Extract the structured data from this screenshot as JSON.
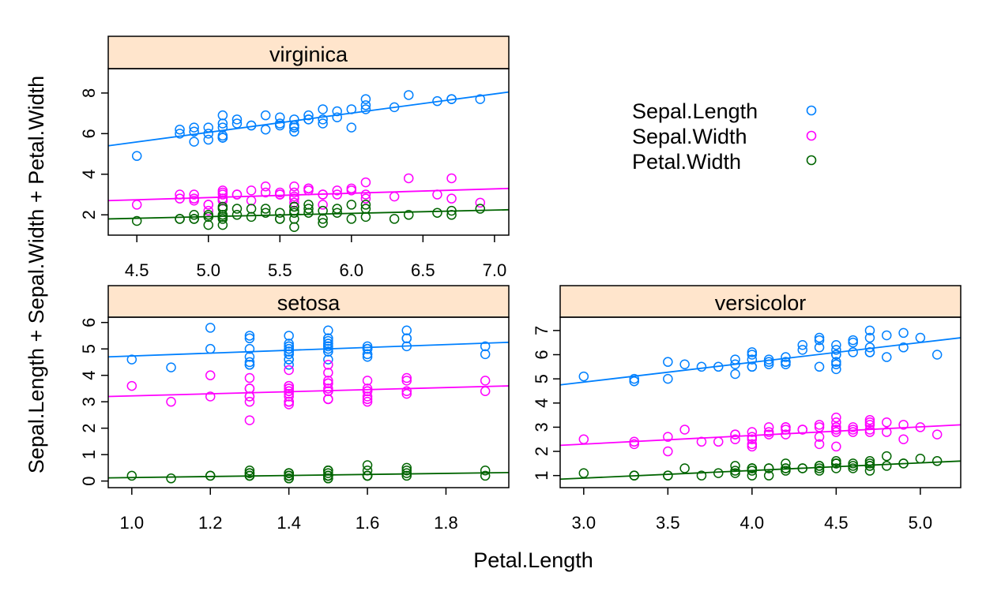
{
  "colors": {
    "strip_fill": "#ffe5cc",
    "Sepal.Length": "#0080ff",
    "Sepal.Width": "#ff00ff",
    "Petal.Width": "#006400",
    "axis": "#000000"
  },
  "chart_data": {
    "type": "scatter",
    "xlabel": "Petal.Length",
    "ylabel": "Sepal.Length + Sepal.Width + Petal.Width",
    "legend": {
      "placement": "top-right",
      "entries": [
        "Sepal.Length",
        "Sepal.Width",
        "Petal.Width"
      ],
      "marker": "open circle"
    },
    "fit_lines": true,
    "panels": [
      {
        "title": "virginica",
        "xlim": [
          4.3,
          7.1
        ],
        "ylim": [
          1.0,
          9.2
        ],
        "x_ticks": [
          "4.5",
          "5.0",
          "5.5",
          "6.0",
          "6.5",
          "7.0"
        ],
        "y_ticks": [
          "2",
          "4",
          "6",
          "8"
        ],
        "x": [
          6.0,
          5.1,
          5.9,
          5.6,
          5.8,
          6.6,
          4.5,
          6.3,
          5.8,
          6.1,
          5.1,
          5.3,
          5.5,
          5.0,
          5.1,
          5.3,
          5.5,
          6.7,
          6.9,
          5.0,
          5.7,
          4.9,
          6.7,
          4.9,
          5.7,
          6.0,
          4.8,
          4.9,
          5.6,
          5.8,
          6.1,
          6.4,
          5.6,
          5.1,
          5.6,
          6.1,
          5.6,
          5.5,
          4.8,
          5.4,
          5.6,
          5.1,
          5.1,
          5.9,
          5.7,
          5.2,
          5.0,
          5.2,
          5.4,
          5.1
        ],
        "series": [
          {
            "name": "Sepal.Length",
            "y": [
              6.3,
              5.8,
              7.1,
              6.3,
              6.5,
              7.6,
              4.9,
              7.3,
              6.7,
              7.2,
              6.5,
              6.4,
              6.8,
              5.7,
              5.8,
              6.4,
              6.5,
              7.7,
              7.7,
              6.0,
              6.9,
              5.6,
              7.7,
              6.3,
              6.7,
              7.2,
              6.2,
              6.1,
              6.4,
              7.2,
              7.4,
              7.9,
              6.4,
              6.3,
              6.1,
              7.7,
              6.3,
              6.4,
              6.0,
              6.9,
              6.7,
              6.9,
              5.8,
              6.8,
              6.7,
              6.7,
              6.3,
              6.5,
              6.2,
              5.9
            ],
            "fit": [
              5.4,
              8.05
            ]
          },
          {
            "name": "Sepal.Width",
            "y": [
              3.3,
              2.7,
              3.0,
              2.9,
              3.0,
              3.0,
              2.5,
              2.9,
              2.5,
              3.6,
              3.2,
              2.7,
              3.0,
              2.5,
              2.8,
              3.2,
              3.0,
              3.8,
              2.6,
              2.2,
              3.2,
              2.8,
              2.8,
              2.7,
              3.3,
              3.2,
              2.8,
              3.0,
              2.8,
              3.0,
              2.8,
              3.8,
              2.8,
              2.8,
              2.6,
              3.0,
              3.4,
              3.1,
              3.0,
              3.1,
              3.1,
              3.1,
              2.7,
              3.2,
              3.3,
              3.0,
              2.5,
              3.0,
              3.4,
              3.0
            ],
            "fit": [
              2.7,
              3.3
            ]
          },
          {
            "name": "Petal.Width",
            "y": [
              2.5,
              1.9,
              2.1,
              1.8,
              2.2,
              2.1,
              1.7,
              1.8,
              1.8,
              2.5,
              2.0,
              1.9,
              2.1,
              2.0,
              2.4,
              2.3,
              1.8,
              2.2,
              2.3,
              1.5,
              2.3,
              2.0,
              2.0,
              1.8,
              2.1,
              1.8,
              1.8,
              1.8,
              2.1,
              1.6,
              1.9,
              2.0,
              2.2,
              1.5,
              1.4,
              2.3,
              2.4,
              1.8,
              1.8,
              2.1,
              2.4,
              2.3,
              1.9,
              2.3,
              2.5,
              2.3,
              1.9,
              2.0,
              2.3,
              1.8
            ],
            "fit": [
              1.8,
              2.25
            ]
          }
        ]
      },
      {
        "title": "setosa",
        "xlim": [
          0.94,
          1.96
        ],
        "ylim": [
          -0.25,
          6.2
        ],
        "x_ticks": [
          "1.0",
          "1.2",
          "1.4",
          "1.6",
          "1.8"
        ],
        "y_ticks": [
          "0",
          "1",
          "2",
          "3",
          "4",
          "5",
          "6"
        ],
        "x": [
          1.4,
          1.4,
          1.3,
          1.5,
          1.4,
          1.7,
          1.4,
          1.5,
          1.4,
          1.5,
          1.5,
          1.6,
          1.4,
          1.1,
          1.2,
          1.5,
          1.3,
          1.4,
          1.7,
          1.5,
          1.7,
          1.5,
          1.0,
          1.7,
          1.9,
          1.6,
          1.6,
          1.5,
          1.4,
          1.6,
          1.6,
          1.5,
          1.5,
          1.4,
          1.5,
          1.2,
          1.3,
          1.4,
          1.3,
          1.5,
          1.3,
          1.3,
          1.3,
          1.6,
          1.9,
          1.4,
          1.6,
          1.4,
          1.5,
          1.4
        ],
        "series": [
          {
            "name": "Sepal.Length",
            "y": [
              5.1,
              4.9,
              4.7,
              4.6,
              5.0,
              5.4,
              4.6,
              5.0,
              4.4,
              4.9,
              5.4,
              4.8,
              4.8,
              4.3,
              5.8,
              5.7,
              5.4,
              5.1,
              5.7,
              5.1,
              5.4,
              5.1,
              4.6,
              5.1,
              4.8,
              5.0,
              5.0,
              5.2,
              5.2,
              4.7,
              4.8,
              5.4,
              5.2,
              5.5,
              4.9,
              5.0,
              5.5,
              4.9,
              4.4,
              5.1,
              5.0,
              4.5,
              4.4,
              5.0,
              5.1,
              4.8,
              5.1,
              4.6,
              5.3,
              5.0
            ],
            "fit": [
              4.7,
              5.25
            ]
          },
          {
            "name": "Sepal.Width",
            "y": [
              3.5,
              3.0,
              3.2,
              3.1,
              3.6,
              3.9,
              3.4,
              3.4,
              2.9,
              3.1,
              3.7,
              3.4,
              3.0,
              3.0,
              4.0,
              4.4,
              3.9,
              3.5,
              3.8,
              3.8,
              3.4,
              3.7,
              3.6,
              3.3,
              3.4,
              3.0,
              3.4,
              3.5,
              3.4,
              3.2,
              3.1,
              3.4,
              4.1,
              4.2,
              3.1,
              3.2,
              3.5,
              3.6,
              3.0,
              3.4,
              3.5,
              2.3,
              3.2,
              3.5,
              3.8,
              3.0,
              3.8,
              3.2,
              3.7,
              3.3
            ],
            "fit": [
              3.2,
              3.6
            ]
          },
          {
            "name": "Petal.Width",
            "y": [
              0.2,
              0.2,
              0.2,
              0.2,
              0.2,
              0.4,
              0.3,
              0.2,
              0.2,
              0.1,
              0.2,
              0.2,
              0.1,
              0.1,
              0.2,
              0.4,
              0.4,
              0.3,
              0.3,
              0.3,
              0.2,
              0.4,
              0.2,
              0.5,
              0.2,
              0.2,
              0.4,
              0.2,
              0.2,
              0.2,
              0.2,
              0.4,
              0.1,
              0.2,
              0.2,
              0.2,
              0.2,
              0.1,
              0.2,
              0.2,
              0.3,
              0.3,
              0.2,
              0.6,
              0.4,
              0.3,
              0.2,
              0.2,
              0.2,
              0.2
            ],
            "fit": [
              0.12,
              0.32
            ]
          }
        ]
      },
      {
        "title": "versicolor",
        "xlim": [
          2.86,
          5.24
        ],
        "ylim": [
          0.5,
          7.55
        ],
        "x_ticks": [
          "3.0",
          "3.5",
          "4.0",
          "4.5",
          "5.0"
        ],
        "y_ticks": [
          "1",
          "2",
          "3",
          "4",
          "5",
          "6",
          "7"
        ],
        "x": [
          4.7,
          4.5,
          4.9,
          4.0,
          4.6,
          4.5,
          4.7,
          3.3,
          4.6,
          3.9,
          3.5,
          4.2,
          4.0,
          4.7,
          3.6,
          4.4,
          4.5,
          4.1,
          4.5,
          3.9,
          4.8,
          4.0,
          4.9,
          4.7,
          4.3,
          4.4,
          4.8,
          5.0,
          4.5,
          3.5,
          3.8,
          3.7,
          3.9,
          5.1,
          4.5,
          4.5,
          4.7,
          4.4,
          4.1,
          4.0,
          4.4,
          4.6,
          4.0,
          3.3,
          4.2,
          4.2,
          4.2,
          4.3,
          3.0,
          4.1
        ],
        "series": [
          {
            "name": "Sepal.Length",
            "y": [
              7.0,
              6.4,
              6.9,
              5.5,
              6.5,
              5.7,
              6.3,
              4.9,
              6.6,
              5.2,
              5.0,
              5.9,
              6.0,
              6.1,
              5.6,
              6.7,
              5.6,
              5.8,
              6.2,
              5.6,
              5.9,
              6.1,
              6.3,
              6.1,
              6.4,
              6.6,
              6.8,
              6.7,
              6.0,
              5.7,
              5.5,
              5.5,
              5.8,
              6.0,
              5.4,
              6.0,
              6.7,
              6.3,
              5.6,
              5.5,
              5.5,
              6.1,
              5.8,
              5.0,
              5.6,
              5.7,
              5.7,
              6.2,
              5.1,
              5.7
            ],
            "fit": [
              4.75,
              6.7
            ]
          },
          {
            "name": "Sepal.Width",
            "y": [
              3.2,
              3.2,
              3.1,
              2.3,
              2.8,
              2.8,
              3.3,
              2.4,
              2.9,
              2.7,
              2.0,
              3.0,
              2.2,
              2.9,
              2.9,
              3.1,
              3.0,
              2.7,
              2.2,
              2.5,
              3.2,
              2.8,
              2.5,
              2.8,
              2.9,
              3.0,
              2.8,
              3.0,
              2.9,
              2.6,
              2.4,
              2.4,
              2.7,
              2.7,
              3.0,
              3.4,
              3.1,
              2.3,
              3.0,
              2.5,
              2.6,
              3.0,
              2.6,
              2.3,
              2.7,
              3.0,
              2.9,
              2.9,
              2.5,
              2.8
            ],
            "fit": [
              2.25,
              3.1
            ]
          },
          {
            "name": "Petal.Width",
            "y": [
              1.4,
              1.5,
              1.5,
              1.3,
              1.5,
              1.3,
              1.6,
              1.0,
              1.3,
              1.4,
              1.0,
              1.5,
              1.0,
              1.4,
              1.3,
              1.4,
              1.5,
              1.0,
              1.5,
              1.1,
              1.8,
              1.3,
              1.5,
              1.2,
              1.3,
              1.4,
              1.4,
              1.7,
              1.5,
              1.0,
              1.1,
              1.0,
              1.2,
              1.6,
              1.5,
              1.6,
              1.5,
              1.3,
              1.3,
              1.3,
              1.2,
              1.4,
              1.2,
              1.0,
              1.3,
              1.2,
              1.3,
              1.3,
              1.1,
              1.3
            ],
            "fit": [
              0.85,
              1.6
            ]
          }
        ]
      }
    ]
  }
}
